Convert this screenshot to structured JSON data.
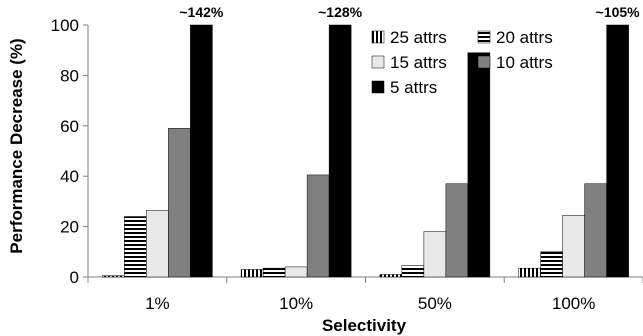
{
  "chart_data": {
    "type": "bar",
    "xlabel": "Selectivity",
    "ylabel": "Performance Decrease (%)",
    "ylim": [
      0,
      100
    ],
    "yticks": [
      0,
      20,
      40,
      60,
      80,
      100
    ],
    "categories": [
      "1%",
      "10%",
      "50%",
      "100%"
    ],
    "legend_position": "top-right",
    "series": [
      {
        "name": "25 attrs",
        "values": [
          0.5,
          3,
          1,
          3.5
        ],
        "pattern": "vertical-stripes",
        "color": "#000000"
      },
      {
        "name": "20 attrs",
        "values": [
          24,
          3.5,
          4.5,
          10
        ],
        "pattern": "horizontal-stripes",
        "color": "#000000"
      },
      {
        "name": "15 attrs",
        "values": [
          26.5,
          4,
          18,
          24.5
        ],
        "pattern": "solid",
        "color": "#e8e8e8"
      },
      {
        "name": "10 attrs",
        "values": [
          59,
          40.5,
          37,
          37
        ],
        "pattern": "solid",
        "color": "#808080"
      },
      {
        "name": "5 attrs",
        "values": [
          100,
          100,
          89,
          100
        ],
        "pattern": "solid",
        "color": "#000000"
      }
    ],
    "annotations": [
      {
        "category": "1%",
        "series": "5 attrs",
        "text": "~142%"
      },
      {
        "category": "10%",
        "series": "5 attrs",
        "text": "~128%"
      },
      {
        "category": "100%",
        "series": "5 attrs",
        "text": "~105%"
      }
    ]
  }
}
